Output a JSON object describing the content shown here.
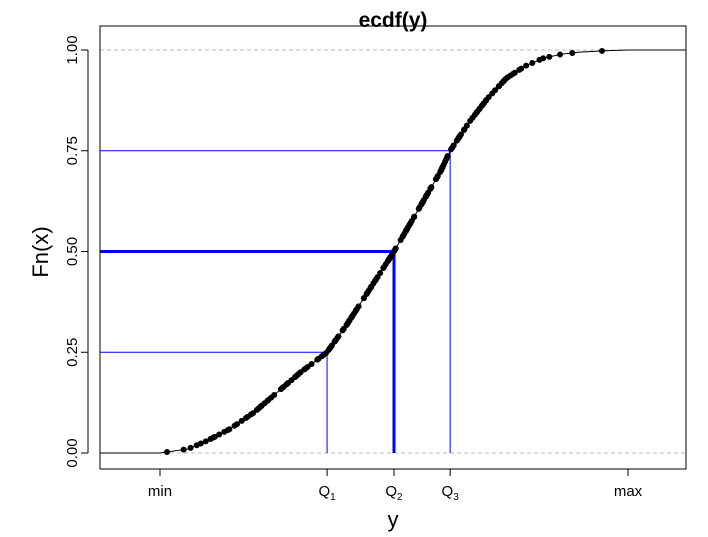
{
  "chart_data": {
    "type": "scatter",
    "title": "ecdf(y)",
    "xlabel": "y",
    "ylabel": "Fn(x)",
    "ylim": [
      0,
      1
    ],
    "xlim": [
      -0.13,
      1.13
    ],
    "yticks": [
      "0.00",
      "0.25",
      "0.50",
      "0.75",
      "1.00"
    ],
    "ytick_values": [
      0,
      0.25,
      0.5,
      0.75,
      1
    ],
    "xticks": [
      {
        "label": "min",
        "sub": "",
        "x": 0.0
      },
      {
        "label": "Q",
        "sub": "1",
        "x": 0.357
      },
      {
        "label": "Q",
        "sub": "2",
        "x": 0.5
      },
      {
        "label": "Q",
        "sub": "3",
        "x": 0.62
      },
      {
        "label": "max",
        "sub": "",
        "x": 1.0
      }
    ],
    "quartile_lines": [
      {
        "x": 0.357,
        "y": 0.25,
        "emphasis": false
      },
      {
        "x": 0.5,
        "y": 0.5,
        "emphasis": true
      },
      {
        "x": 0.62,
        "y": 0.75,
        "emphasis": false
      }
    ],
    "curve": {
      "x": [
        0,
        0.06,
        0.1,
        0.15,
        0.2,
        0.25,
        0.3,
        0.357,
        0.4,
        0.45,
        0.5,
        0.55,
        0.6,
        0.62,
        0.66,
        0.7,
        0.74,
        0.78,
        0.82,
        0.86,
        0.9,
        0.95,
        1.0
      ],
      "y": [
        0,
        0.01,
        0.03,
        0.06,
        0.1,
        0.15,
        0.2,
        0.25,
        0.32,
        0.41,
        0.5,
        0.6,
        0.7,
        0.75,
        0.82,
        0.88,
        0.93,
        0.96,
        0.98,
        0.99,
        0.995,
        0.998,
        1.0
      ]
    },
    "n_points": 200,
    "point_color": "#000000",
    "quartile_line_color": "#0000ff",
    "reference_line_color": "#bbbbbb"
  }
}
